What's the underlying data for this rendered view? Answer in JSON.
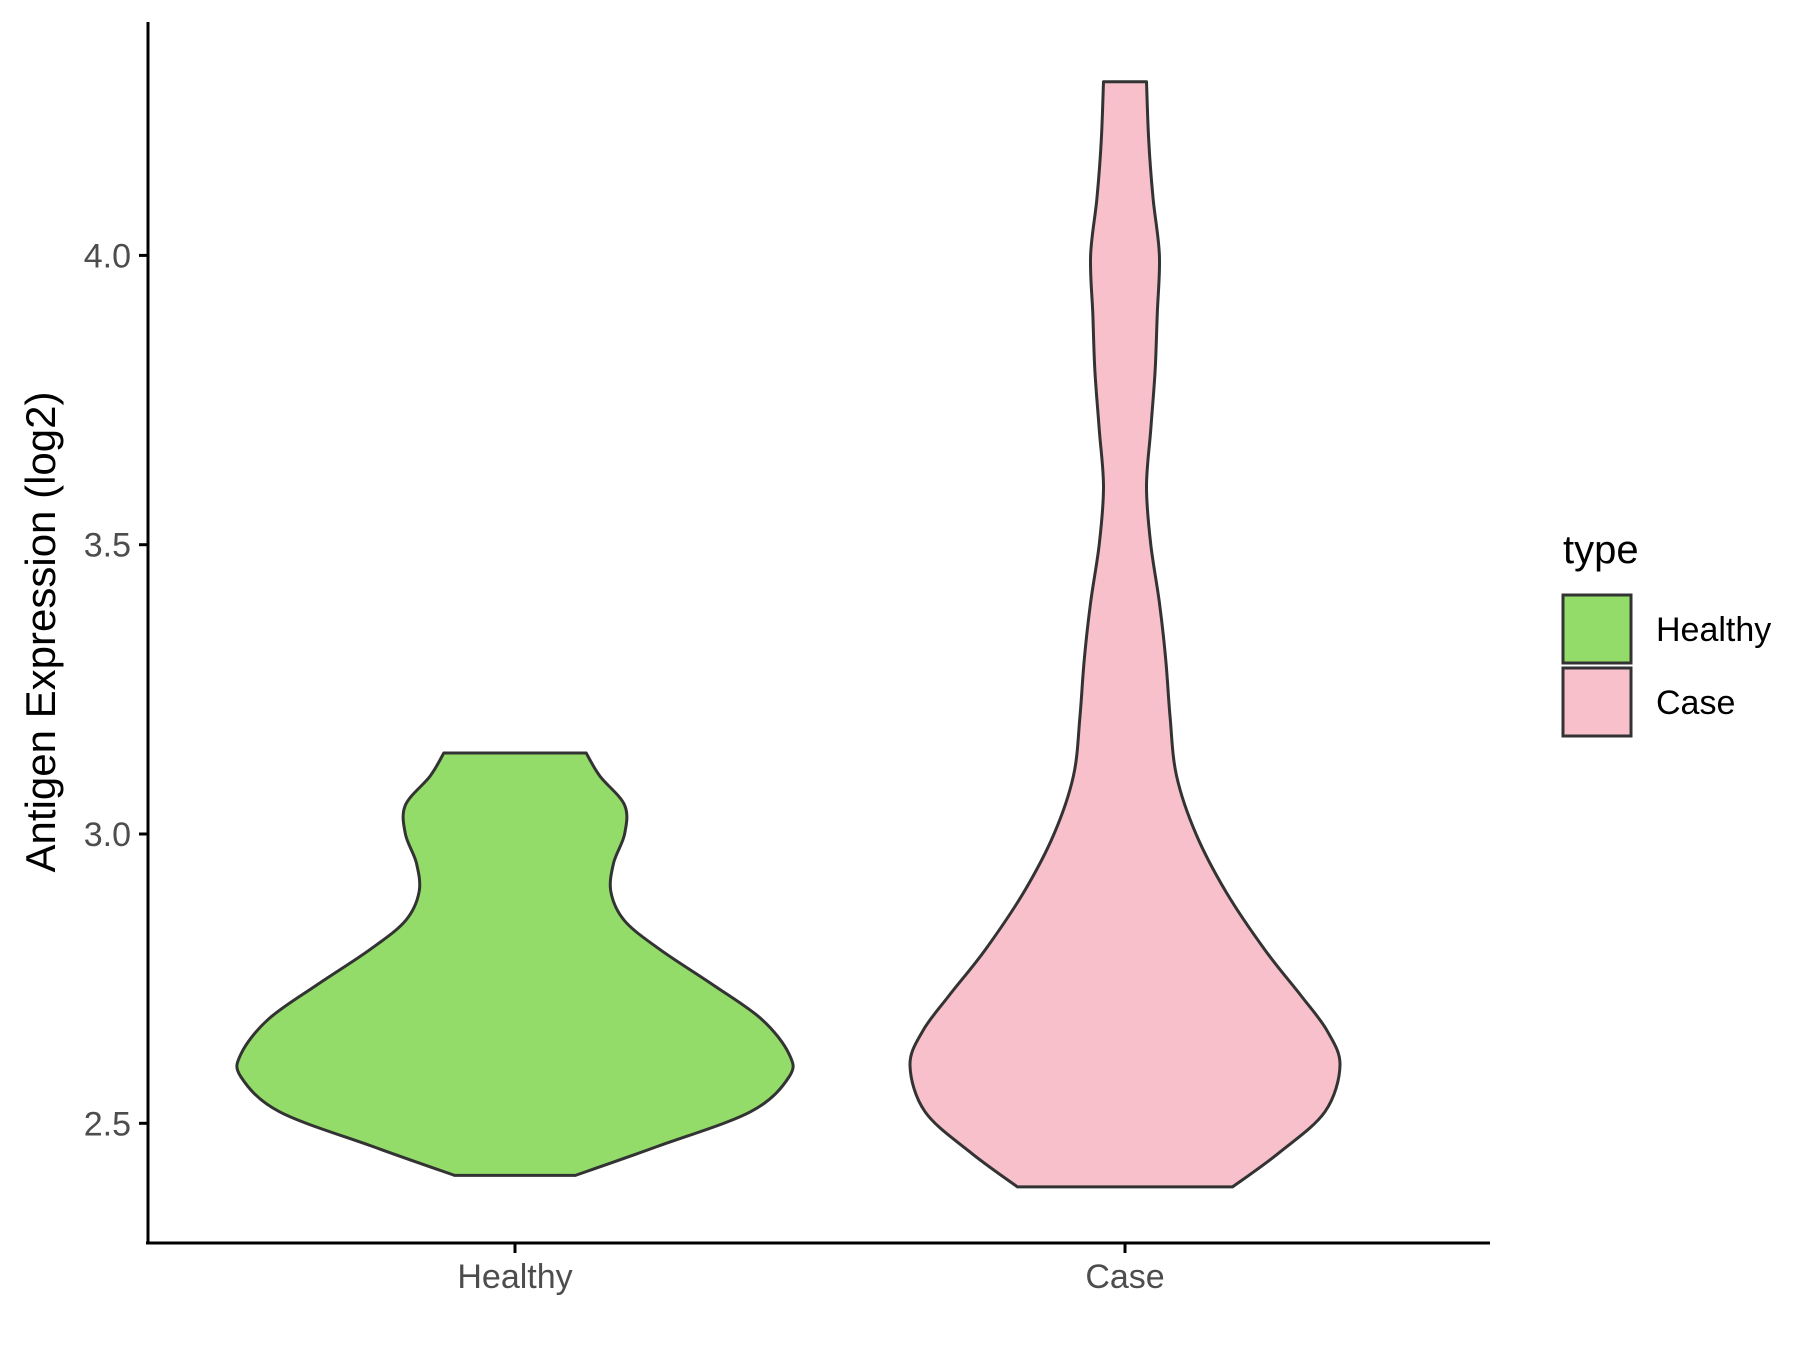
{
  "chart_data": {
    "type": "violin",
    "xlabel": "",
    "ylabel": "Antigen Expression (log2)",
    "categories": [
      "Healthy",
      "Case"
    ],
    "ylim": [
      2.3,
      4.4
    ],
    "yticks": [
      2.5,
      3.0,
      3.5,
      4.0
    ],
    "ytick_labels": [
      "2.5",
      "3.0",
      "3.5",
      "4.0"
    ],
    "grid": false,
    "legend": {
      "title": "type",
      "position": "right",
      "items": [
        {
          "label": "Healthy",
          "color": "#93dc6a"
        },
        {
          "label": "Case",
          "color": "#f7c0cb"
        }
      ]
    },
    "series": [
      {
        "name": "Healthy",
        "color": "#93dc6a",
        "min": 2.41,
        "max": 3.14,
        "density_profile": [
          [
            2.41,
            0.22
          ],
          [
            2.46,
            0.52
          ],
          [
            2.52,
            0.86
          ],
          [
            2.58,
            1.0
          ],
          [
            2.62,
            1.0
          ],
          [
            2.68,
            0.9
          ],
          [
            2.74,
            0.72
          ],
          [
            2.8,
            0.53
          ],
          [
            2.85,
            0.4
          ],
          [
            2.9,
            0.35
          ],
          [
            2.95,
            0.36
          ],
          [
            3.0,
            0.4
          ],
          [
            3.05,
            0.4
          ],
          [
            3.1,
            0.31
          ],
          [
            3.14,
            0.26
          ]
        ]
      },
      {
        "name": "Case",
        "color": "#f7c0cb",
        "min": 2.39,
        "max": 4.3,
        "density_profile": [
          [
            2.39,
            0.5
          ],
          [
            2.45,
            0.72
          ],
          [
            2.52,
            0.93
          ],
          [
            2.6,
            1.0
          ],
          [
            2.66,
            0.94
          ],
          [
            2.72,
            0.82
          ],
          [
            2.8,
            0.65
          ],
          [
            2.9,
            0.47
          ],
          [
            3.0,
            0.33
          ],
          [
            3.1,
            0.24
          ],
          [
            3.2,
            0.21
          ],
          [
            3.3,
            0.19
          ],
          [
            3.4,
            0.16
          ],
          [
            3.5,
            0.12
          ],
          [
            3.6,
            0.1
          ],
          [
            3.7,
            0.12
          ],
          [
            3.8,
            0.14
          ],
          [
            3.9,
            0.15
          ],
          [
            4.0,
            0.16
          ],
          [
            4.1,
            0.13
          ],
          [
            4.2,
            0.11
          ],
          [
            4.3,
            0.1
          ]
        ]
      }
    ]
  }
}
